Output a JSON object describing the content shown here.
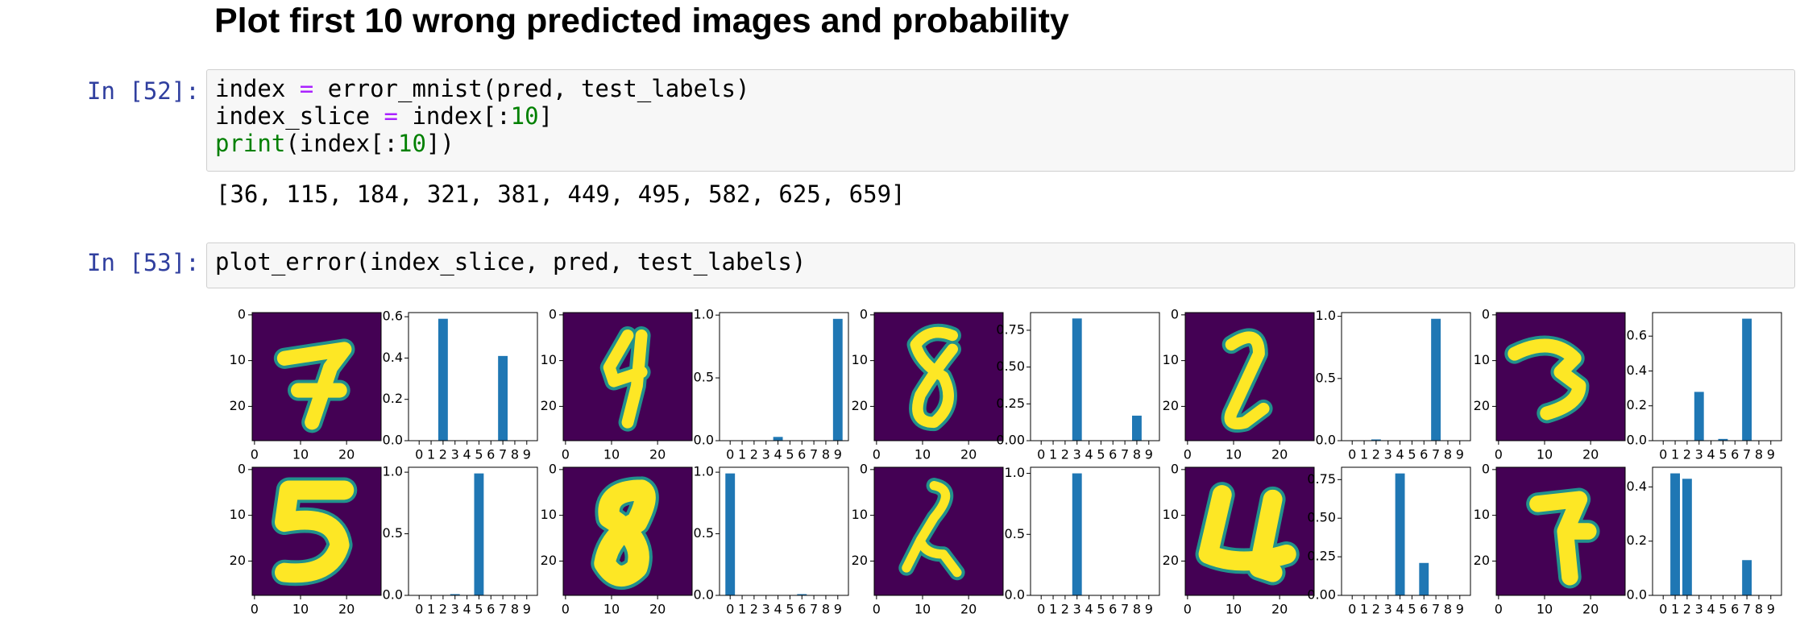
{
  "heading": "Plot first 10 wrong predicted images and probability",
  "cells": [
    {
      "prompt": "In [52]:",
      "code": [
        [
          {
            "text": "index ",
            "color": "#000000"
          },
          {
            "text": "=",
            "color": "#aa22ff"
          },
          {
            "text": " error_mnist(pred, test_labels)",
            "color": "#000000"
          }
        ],
        [
          {
            "text": "index_slice ",
            "color": "#000000"
          },
          {
            "text": "=",
            "color": "#aa22ff"
          },
          {
            "text": " index[:",
            "color": "#000000"
          },
          {
            "text": "10",
            "color": "#008000"
          },
          {
            "text": "]",
            "color": "#000000"
          }
        ],
        [
          {
            "text": "print",
            "color": "#008000"
          },
          {
            "text": "(index[:",
            "color": "#000000"
          },
          {
            "text": "10",
            "color": "#008000"
          },
          {
            "text": "])",
            "color": "#000000"
          }
        ]
      ],
      "output": "[36, 115, 184, 321, 381, 449, 495, 582, 625, 659]"
    },
    {
      "prompt": "In [53]:",
      "code": [
        [
          {
            "text": "plot_error(index_slice, pred, test_labels)",
            "color": "#000000"
          }
        ]
      ]
    }
  ],
  "image_axes": {
    "xlim": [
      -0.5,
      27.5
    ],
    "ylim": [
      -0.5,
      27.5
    ],
    "xticks": [
      0,
      10,
      20
    ],
    "yticks": [
      0,
      10,
      20
    ],
    "background": "#440154",
    "ink": "#fde725"
  },
  "chart_data": [
    {
      "type": "bar",
      "categories": [
        "0",
        "1",
        "2",
        "3",
        "4",
        "5",
        "6",
        "7",
        "8",
        "9"
      ],
      "values": [
        0,
        0,
        0.59,
        0,
        0,
        0,
        0,
        0.41,
        0,
        0
      ],
      "color": "#1f77b4",
      "ylim": [
        0,
        0.62
      ],
      "yticks": [
        {
          "value": 0,
          "label": "0.0"
        },
        0.2,
        0.4,
        0.6
      ]
    },
    {
      "type": "bar",
      "categories": [
        "0",
        "1",
        "2",
        "3",
        "4",
        "5",
        "6",
        "7",
        "8",
        "9"
      ],
      "values": [
        0,
        0,
        0,
        0,
        0.03,
        0,
        0,
        0,
        0,
        0.97
      ],
      "color": "#1f77b4",
      "ylim": [
        0,
        1.02
      ],
      "yticks": [
        {
          "value": 0,
          "label": "0.0"
        },
        0.5,
        {
          "value": 1,
          "label": "1.0"
        }
      ]
    },
    {
      "type": "bar",
      "categories": [
        "0",
        "1",
        "2",
        "3",
        "4",
        "5",
        "6",
        "7",
        "8",
        "9"
      ],
      "values": [
        0,
        0,
        0,
        0.83,
        0,
        0,
        0,
        0,
        0.17,
        0
      ],
      "color": "#1f77b4",
      "ylim": [
        0,
        0.87
      ],
      "yticks": [
        {
          "value": 0,
          "label": "0.00"
        },
        0.25,
        {
          "value": 0.5,
          "label": "0.50"
        },
        0.75
      ]
    },
    {
      "type": "bar",
      "categories": [
        "0",
        "1",
        "2",
        "3",
        "4",
        "5",
        "6",
        "7",
        "8",
        "9"
      ],
      "values": [
        0,
        0,
        0.01,
        0,
        0,
        0,
        0,
        0.98,
        0,
        0
      ],
      "color": "#1f77b4",
      "ylim": [
        0,
        1.03
      ],
      "yticks": [
        {
          "value": 0,
          "label": "0.0"
        },
        0.5,
        {
          "value": 1,
          "label": "1.0"
        }
      ]
    },
    {
      "type": "bar",
      "categories": [
        "0",
        "1",
        "2",
        "3",
        "4",
        "5",
        "6",
        "7",
        "8",
        "9"
      ],
      "values": [
        0,
        0,
        0,
        0.28,
        0,
        0.01,
        0,
        0.7,
        0,
        0
      ],
      "color": "#1f77b4",
      "ylim": [
        0,
        0.735
      ],
      "yticks": [
        {
          "value": 0,
          "label": "0.0"
        },
        0.2,
        0.4,
        0.6
      ]
    },
    {
      "type": "bar",
      "categories": [
        "0",
        "1",
        "2",
        "3",
        "4",
        "5",
        "6",
        "7",
        "8",
        "9"
      ],
      "values": [
        0,
        0,
        0,
        0.01,
        0,
        0.99,
        0,
        0,
        0,
        0
      ],
      "color": "#1f77b4",
      "ylim": [
        0,
        1.04
      ],
      "yticks": [
        {
          "value": 0,
          "label": "0.0"
        },
        0.5,
        {
          "value": 1,
          "label": "1.0"
        }
      ]
    },
    {
      "type": "bar",
      "categories": [
        "0",
        "1",
        "2",
        "3",
        "4",
        "5",
        "6",
        "7",
        "8",
        "9"
      ],
      "values": [
        0.99,
        0,
        0,
        0,
        0,
        0,
        0.01,
        0,
        0,
        0
      ],
      "color": "#1f77b4",
      "ylim": [
        0,
        1.04
      ],
      "yticks": [
        {
          "value": 0,
          "label": "0.0"
        },
        0.5,
        {
          "value": 1,
          "label": "1.0"
        }
      ]
    },
    {
      "type": "bar",
      "categories": [
        "0",
        "1",
        "2",
        "3",
        "4",
        "5",
        "6",
        "7",
        "8",
        "9"
      ],
      "values": [
        0,
        0,
        0,
        1,
        0,
        0,
        0,
        0,
        0,
        0
      ],
      "color": "#1f77b4",
      "ylim": [
        0,
        1.05
      ],
      "yticks": [
        {
          "value": 0,
          "label": "0.0"
        },
        0.5,
        {
          "value": 1,
          "label": "1.0"
        }
      ]
    },
    {
      "type": "bar",
      "categories": [
        "0",
        "1",
        "2",
        "3",
        "4",
        "5",
        "6",
        "7",
        "8",
        "9"
      ],
      "values": [
        0,
        0,
        0,
        0,
        0.79,
        0,
        0.21,
        0,
        0,
        0
      ],
      "color": "#1f77b4",
      "ylim": [
        0,
        0.83
      ],
      "yticks": [
        {
          "value": 0,
          "label": "0.00"
        },
        0.25,
        {
          "value": 0.5,
          "label": "0.50"
        },
        0.75
      ]
    },
    {
      "type": "bar",
      "categories": [
        "0",
        "1",
        "2",
        "3",
        "4",
        "5",
        "6",
        "7",
        "8",
        "9"
      ],
      "values": [
        0,
        0.45,
        0.43,
        0,
        0,
        0,
        0,
        0.13,
        0,
        0
      ],
      "color": "#1f77b4",
      "ylim": [
        0,
        0.4725
      ],
      "yticks": [
        {
          "value": 0,
          "label": "0.0"
        },
        0.2,
        0.4
      ]
    }
  ]
}
